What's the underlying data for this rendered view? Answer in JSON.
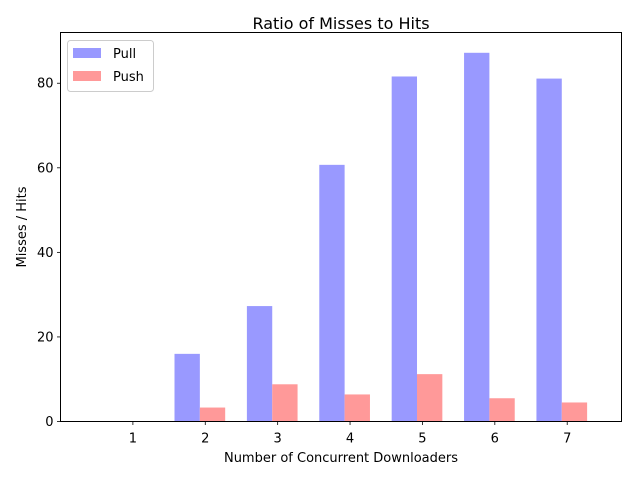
{
  "chart_data": {
    "type": "bar",
    "title": "Ratio of Misses to Hits",
    "xlabel": "Number of Concurrent Downloaders",
    "ylabel": "Misses / Hits",
    "categories": [
      "1",
      "2",
      "3",
      "4",
      "5",
      "6",
      "7"
    ],
    "series": [
      {
        "name": "Pull",
        "color": "#9999ff",
        "values": [
          0,
          16,
          27.3,
          60.7,
          81.6,
          87.2,
          81.1
        ]
      },
      {
        "name": "Push",
        "color": "#ff9999",
        "values": [
          0,
          3.3,
          8.8,
          6.4,
          11.2,
          5.5,
          4.5
        ]
      }
    ],
    "ylim": [
      0,
      92
    ],
    "yticks": [
      0,
      20,
      40,
      60,
      80
    ],
    "grid": false,
    "legend": "top-left"
  }
}
